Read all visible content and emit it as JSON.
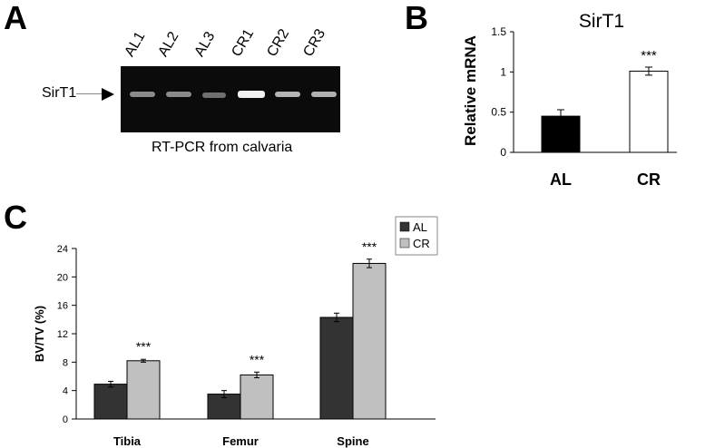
{
  "panels": {
    "a": "A",
    "b": "B",
    "c": "C"
  },
  "gel": {
    "lanes": [
      "AL1",
      "AL2",
      "AL3",
      "CR1",
      "CR2",
      "CR3"
    ],
    "band_label": "SirT1",
    "caption": "RT-PCR from calvaria"
  },
  "chart_data": [
    {
      "type": "bar",
      "title": "SirT1",
      "xlabel": "",
      "ylabel": "Relative mRNA",
      "categories": [
        "AL",
        "CR"
      ],
      "values": [
        0.45,
        1.01
      ],
      "errors": [
        0.08,
        0.05
      ],
      "colors": [
        "#000000",
        "#ffffff"
      ],
      "significance": [
        "",
        "***"
      ],
      "ylim": [
        0,
        1.5
      ],
      "yticks": [
        "0",
        "0.5",
        "1",
        "1.5"
      ],
      "grid": false
    },
    {
      "type": "bar",
      "xlabel": "",
      "ylabel": "BV/TV (%)",
      "categories": [
        "Tibia",
        "Femur",
        "Spine"
      ],
      "series": [
        {
          "name": "AL",
          "values": [
            4.9,
            3.5,
            14.3
          ],
          "errors": [
            0.4,
            0.5,
            0.6
          ],
          "color": "#333333"
        },
        {
          "name": "CR",
          "values": [
            8.2,
            6.2,
            21.9
          ],
          "errors": [
            0.2,
            0.4,
            0.6
          ],
          "color": "#c0c0c0"
        }
      ],
      "significance": [
        "***",
        "***",
        "***"
      ],
      "ylim": [
        0,
        24
      ],
      "yticks": [
        "0",
        "4",
        "8",
        "12",
        "16",
        "20",
        "24"
      ],
      "legend": "top-right",
      "grid": false
    }
  ]
}
